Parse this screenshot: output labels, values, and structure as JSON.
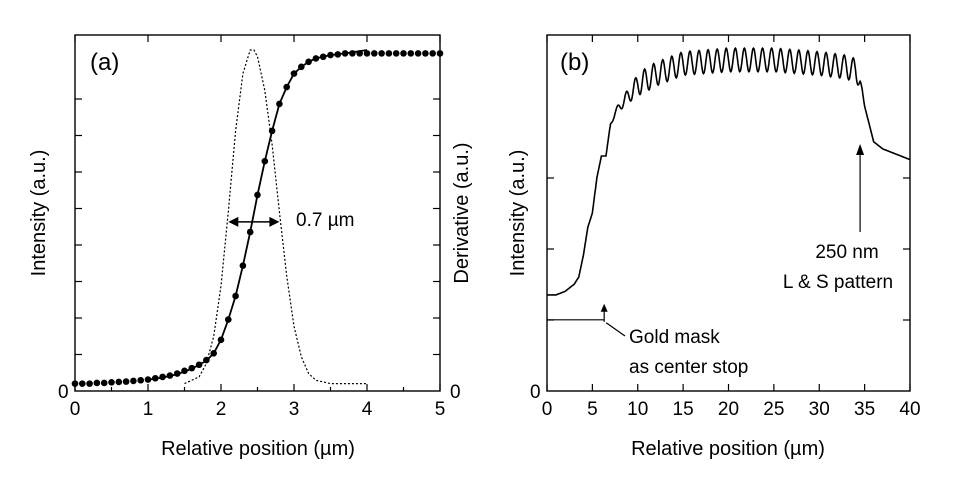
{
  "chart_data": [
    {
      "type": "line",
      "panel_label": "(a)",
      "xlabel": "Relative position (µm)",
      "ylabel_left": "Intensity (a.u.)",
      "ylabel_right": "Derivative (a.u.)",
      "xlim": [
        0,
        5
      ],
      "ylim": [
        0,
        1.0
      ],
      "x_ticks": [
        "0",
        "1",
        "2",
        "3",
        "4",
        "5"
      ],
      "y_tick_left_label": "0",
      "y_tick_right_label": "0",
      "grid": false,
      "series": [
        {
          "style": "dots",
          "x": [
            0.0,
            0.1,
            0.2,
            0.3,
            0.4,
            0.5,
            0.6,
            0.7,
            0.8,
            0.9,
            1.0,
            1.1,
            1.2,
            1.3,
            1.4,
            1.5,
            1.6,
            1.7,
            1.8,
            1.9,
            2.0,
            2.1,
            2.2,
            2.3,
            2.4,
            2.5,
            2.6,
            2.7,
            2.8,
            2.9,
            3.0,
            3.1,
            3.2,
            3.3,
            3.4,
            3.5,
            3.6,
            3.7,
            3.8,
            3.9,
            4.0,
            4.1,
            4.2,
            4.3,
            4.4,
            4.5,
            4.6,
            4.7,
            4.8,
            4.9,
            5.0
          ],
          "y": [
            0.01,
            0.01,
            0.01,
            0.012,
            0.012,
            0.014,
            0.015,
            0.016,
            0.018,
            0.02,
            0.022,
            0.026,
            0.03,
            0.034,
            0.04,
            0.048,
            0.056,
            0.066,
            0.08,
            0.1,
            0.14,
            0.2,
            0.27,
            0.36,
            0.46,
            0.57,
            0.67,
            0.76,
            0.84,
            0.89,
            0.93,
            0.95,
            0.965,
            0.975,
            0.98,
            0.985,
            0.987,
            0.99,
            0.99,
            0.99,
            0.99,
            0.99,
            0.99,
            0.99,
            0.99,
            0.99,
            0.99,
            0.99,
            0.99,
            0.99,
            0.99
          ]
        },
        {
          "style": "solid",
          "x": [
            1.0,
            1.2,
            1.4,
            1.6,
            1.8,
            1.9,
            2.0,
            2.1,
            2.2,
            2.3,
            2.4,
            2.5,
            2.6,
            2.7,
            2.8,
            2.9,
            3.0,
            3.1,
            3.2,
            3.3,
            3.5,
            3.7,
            4.0
          ],
          "y": [
            0.022,
            0.028,
            0.038,
            0.054,
            0.078,
            0.1,
            0.14,
            0.2,
            0.27,
            0.36,
            0.46,
            0.57,
            0.67,
            0.76,
            0.84,
            0.89,
            0.93,
            0.95,
            0.965,
            0.975,
            0.985,
            0.99,
            1.0
          ]
        },
        {
          "style": "dotted",
          "x": [
            1.5,
            1.7,
            1.8,
            1.9,
            2.0,
            2.1,
            2.2,
            2.3,
            2.4,
            2.45,
            2.5,
            2.6,
            2.7,
            2.8,
            2.9,
            3.0,
            3.1,
            3.2,
            3.3,
            3.5,
            3.7,
            4.0
          ],
          "y": [
            0.01,
            0.03,
            0.07,
            0.15,
            0.3,
            0.52,
            0.76,
            0.93,
            1.0,
            1.0,
            0.98,
            0.88,
            0.72,
            0.52,
            0.33,
            0.18,
            0.09,
            0.04,
            0.02,
            0.01,
            0.01,
            0.01
          ]
        }
      ],
      "annotations": [
        {
          "text": "0.7 µm",
          "x_start": 2.1,
          "x_end": 2.8,
          "y": 0.49
        }
      ]
    },
    {
      "type": "line",
      "panel_label": "(b)",
      "xlabel": "Relative position (µm)",
      "ylabel": "Intensity (a.u.)",
      "xlim": [
        0,
        40
      ],
      "ylim": [
        0,
        1.0
      ],
      "x_ticks": [
        "0",
        "5",
        "10",
        "15",
        "20",
        "25",
        "30",
        "35",
        "40"
      ],
      "y_tick_label": "0",
      "grid": false,
      "series": [
        {
          "style": "solid",
          "description_points": {
            "x": [
              0,
              1,
              2,
              3,
              3.5,
              4,
              4.5,
              5,
              5.5,
              6,
              6.5,
              7,
              7.5,
              8,
              9,
              10,
              12,
              15,
              20,
              25,
              30,
              33,
              34,
              34.5,
              35,
              35.5,
              36,
              37,
              38,
              39,
              40
            ],
            "y": [
              0.27,
              0.27,
              0.28,
              0.3,
              0.32,
              0.38,
              0.46,
              0.5,
              0.6,
              0.66,
              0.66,
              0.75,
              0.78,
              0.8,
              0.83,
              0.86,
              0.89,
              0.92,
              0.93,
              0.93,
              0.92,
              0.91,
              0.9,
              0.87,
              0.8,
              0.75,
              0.7,
              0.68,
              0.67,
              0.66,
              0.65
            ]
          },
          "oscillation_start": 6.5,
          "oscillation_end": 35,
          "oscillation_period": 1.0
        },
        {
          "style": "baseline",
          "x": [
            0,
            6.3
          ],
          "y": [
            0.2,
            0.2
          ]
        }
      ],
      "annotations": [
        {
          "text_lines": [
            "Gold mask",
            "as center stop"
          ],
          "arrow_x": 6.3,
          "arrow_y": 0.2
        },
        {
          "text_lines": [
            "250 nm",
            "L & S pattern"
          ],
          "arrow_x": 34.5,
          "arrow_y": 0.75
        }
      ]
    }
  ]
}
